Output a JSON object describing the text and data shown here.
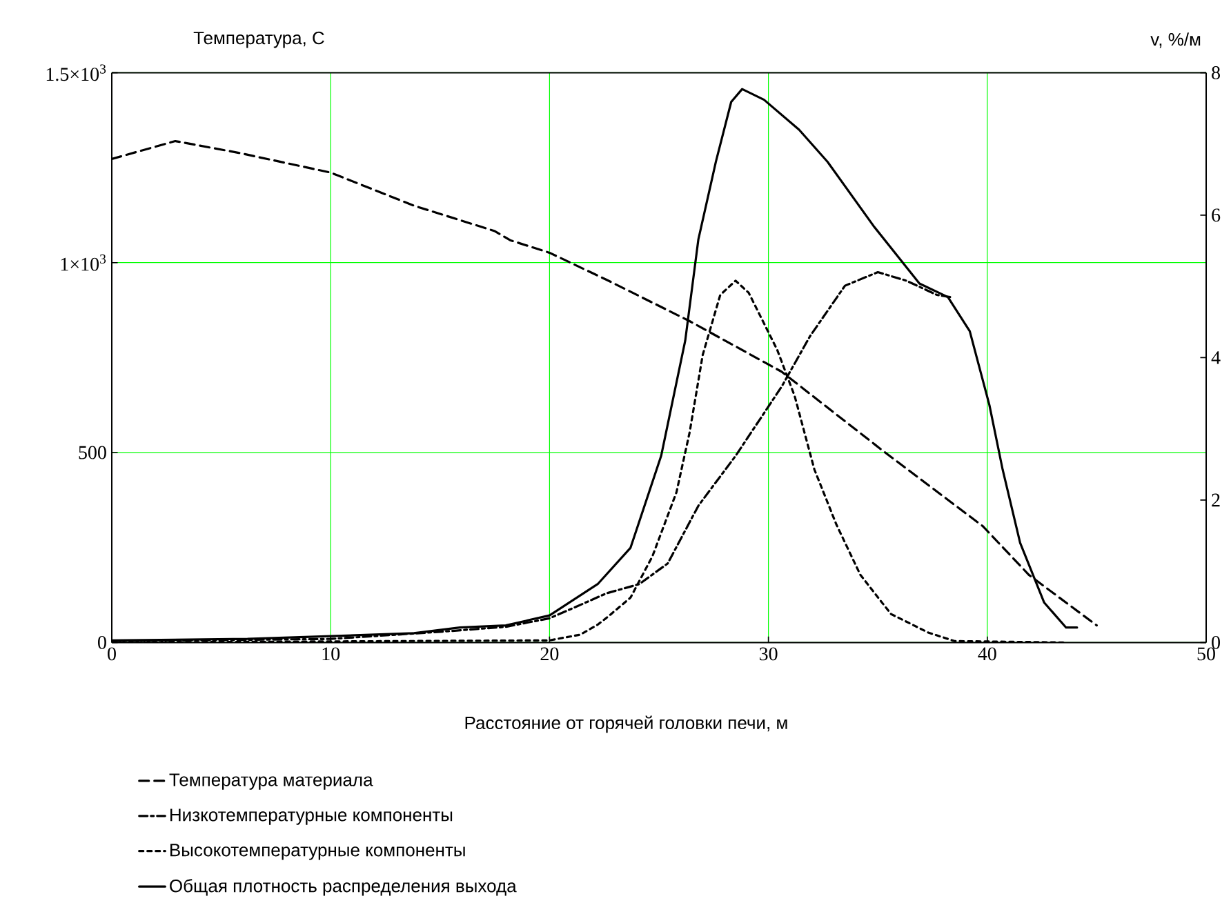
{
  "chart_data": {
    "type": "line",
    "xlabel": "Расстояние от горячей головки печи, м",
    "ylabel": "Температура, С",
    "y2label": "v, %/м",
    "xlim": [
      0,
      50
    ],
    "xticks": [
      0,
      10,
      20,
      30,
      40,
      50
    ],
    "ylim": [
      0,
      1500
    ],
    "yticks": [
      0,
      500,
      {
        "value": 1000,
        "label": "1×10$^{3}$"
      },
      {
        "value": 1500,
        "label": "1.5×10$^{3}$"
      }
    ],
    "y2lim": [
      0,
      8
    ],
    "y2ticks": [
      0,
      2,
      4,
      6,
      8
    ],
    "grid": true,
    "legend": "bottom",
    "marker": "none",
    "series": [
      {
        "name": "Температура материала",
        "color": "#000000",
        "line_style": "dashed",
        "x": [
          0,
          2.9,
          5.8,
          10,
          13.8,
          17.5,
          18.2,
          20,
          22.6,
          26.4,
          30.6,
          35.2,
          39.8,
          41.9,
          45
        ],
        "values": [
          1273,
          1320,
          1289,
          1237,
          1150,
          1083,
          1059,
          1026,
          955,
          846,
          713,
          506,
          306,
          178,
          45
        ]
      },
      {
        "name": "Низкотемпературные компоненты",
        "color": "#000000",
        "line_style": "dashdot",
        "axis": "y2",
        "x": [
          0,
          10,
          15,
          18,
          20,
          21.2,
          22.6,
          24.1,
          25.4,
          26.8,
          28.5,
          30.6,
          31.9,
          33.5,
          35.0,
          36.3,
          37.7,
          38.3
        ],
        "values": [
          0.02,
          0.05,
          0.15,
          0.22,
          0.34,
          0.5,
          0.69,
          0.82,
          1.11,
          1.92,
          2.62,
          3.59,
          4.3,
          5.01,
          5.2,
          5.08,
          4.88,
          4.85
        ]
      },
      {
        "name": "Высокотемпературные компоненты",
        "color": "#000000",
        "line_style": "dotted",
        "axis": "y2",
        "x": [
          0,
          20,
          21.4,
          22.2,
          22.7,
          23.7,
          24.7,
          25.8,
          26.4,
          27.0,
          27.8,
          28.5,
          29.1,
          30.4,
          31.2,
          32.1,
          33.1,
          34.2,
          35.6,
          37.3,
          38.5,
          43.6
        ],
        "values": [
          0,
          0.03,
          0.11,
          0.25,
          0.37,
          0.63,
          1.21,
          2.11,
          2.95,
          4.04,
          4.88,
          5.08,
          4.91,
          4.11,
          3.46,
          2.43,
          1.66,
          0.95,
          0.4,
          0.14,
          0.02,
          0
        ]
      },
      {
        "name": "Общая плотность распределения выхода",
        "color": "#000000",
        "line_style": "solid",
        "axis": "y2",
        "x": [
          0,
          6.2,
          13.8,
          15.9,
          18,
          20,
          22.2,
          23.7,
          25.1,
          26.2,
          26.8,
          27.6,
          28.3,
          28.8,
          29.8,
          31.4,
          32.7,
          34.8,
          36.9,
          38.2,
          39.2,
          40.1,
          40.7,
          41.5,
          42.6,
          43.6,
          44.1
        ],
        "values": [
          0.03,
          0.05,
          0.13,
          0.21,
          0.24,
          0.38,
          0.82,
          1.33,
          2.62,
          4.24,
          5.66,
          6.75,
          7.59,
          7.77,
          7.62,
          7.2,
          6.75,
          5.85,
          5.04,
          4.85,
          4.37,
          3.33,
          2.43,
          1.4,
          0.56,
          0.21,
          0.21
        ]
      }
    ]
  }
}
